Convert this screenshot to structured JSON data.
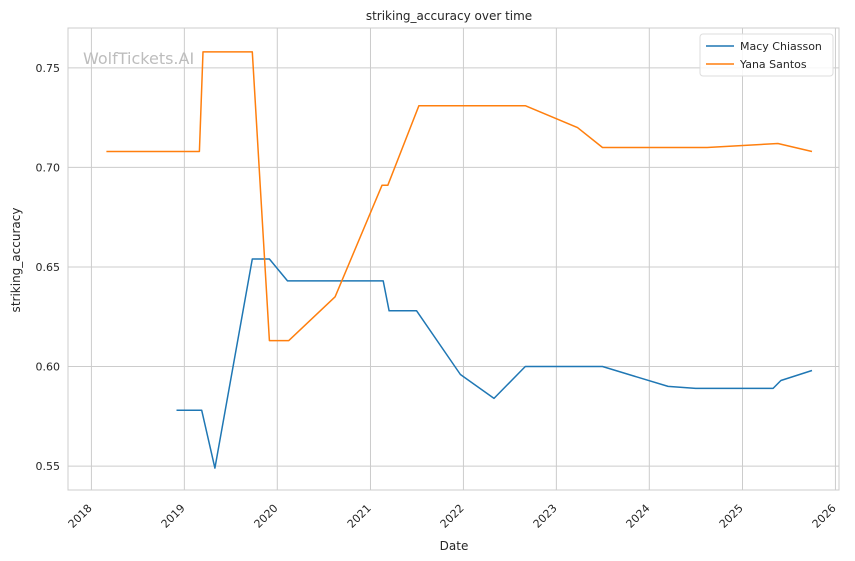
{
  "chart_data": {
    "type": "line",
    "title": "striking_accuracy over time",
    "xlabel": "Date",
    "ylabel": "striking_accuracy",
    "watermark": "WolfTickets.AI",
    "xlim": [
      "2017-10-01",
      "2026-01-15"
    ],
    "ylim": [
      0.538,
      0.77
    ],
    "x_ticks": [
      "2018",
      "2019",
      "2020",
      "2021",
      "2022",
      "2023",
      "2024",
      "2025",
      "2026"
    ],
    "y_ticks": [
      "0.55",
      "0.60",
      "0.65",
      "0.70",
      "0.75"
    ],
    "grid": true,
    "legend_position": "top-right",
    "series": [
      {
        "name": "Macy Chiasson",
        "color": "#1f77b4",
        "points": [
          [
            "2018-12-01",
            0.578
          ],
          [
            "2019-03-10",
            0.578
          ],
          [
            "2019-05-01",
            0.549
          ],
          [
            "2019-09-25",
            0.654
          ],
          [
            "2019-12-01",
            0.654
          ],
          [
            "2020-02-10",
            0.643
          ],
          [
            "2021-02-20",
            0.643
          ],
          [
            "2021-03-15",
            0.628
          ],
          [
            "2021-07-01",
            0.628
          ],
          [
            "2021-12-20",
            0.596
          ],
          [
            "2022-05-01",
            0.584
          ],
          [
            "2022-09-01",
            0.6
          ],
          [
            "2023-07-01",
            0.6
          ],
          [
            "2024-03-15",
            0.59
          ],
          [
            "2024-07-01",
            0.589
          ],
          [
            "2025-05-01",
            0.589
          ],
          [
            "2025-06-01",
            0.593
          ],
          [
            "2025-10-01",
            0.598
          ]
        ]
      },
      {
        "name": "Yana Santos",
        "color": "#ff7f0e",
        "points": [
          [
            "2018-03-01",
            0.708
          ],
          [
            "2019-03-01",
            0.708
          ],
          [
            "2019-03-15",
            0.758
          ],
          [
            "2019-09-25",
            0.758
          ],
          [
            "2019-12-01",
            0.613
          ],
          [
            "2020-02-15",
            0.613
          ],
          [
            "2020-08-15",
            0.635
          ],
          [
            "2021-02-15",
            0.691
          ],
          [
            "2021-03-10",
            0.691
          ],
          [
            "2021-07-10",
            0.731
          ],
          [
            "2022-09-01",
            0.731
          ],
          [
            "2023-03-25",
            0.72
          ],
          [
            "2023-07-01",
            0.71
          ],
          [
            "2024-08-01",
            0.71
          ],
          [
            "2024-08-15",
            0.71
          ],
          [
            "2025-05-20",
            0.712
          ],
          [
            "2025-10-01",
            0.708
          ]
        ]
      }
    ]
  }
}
